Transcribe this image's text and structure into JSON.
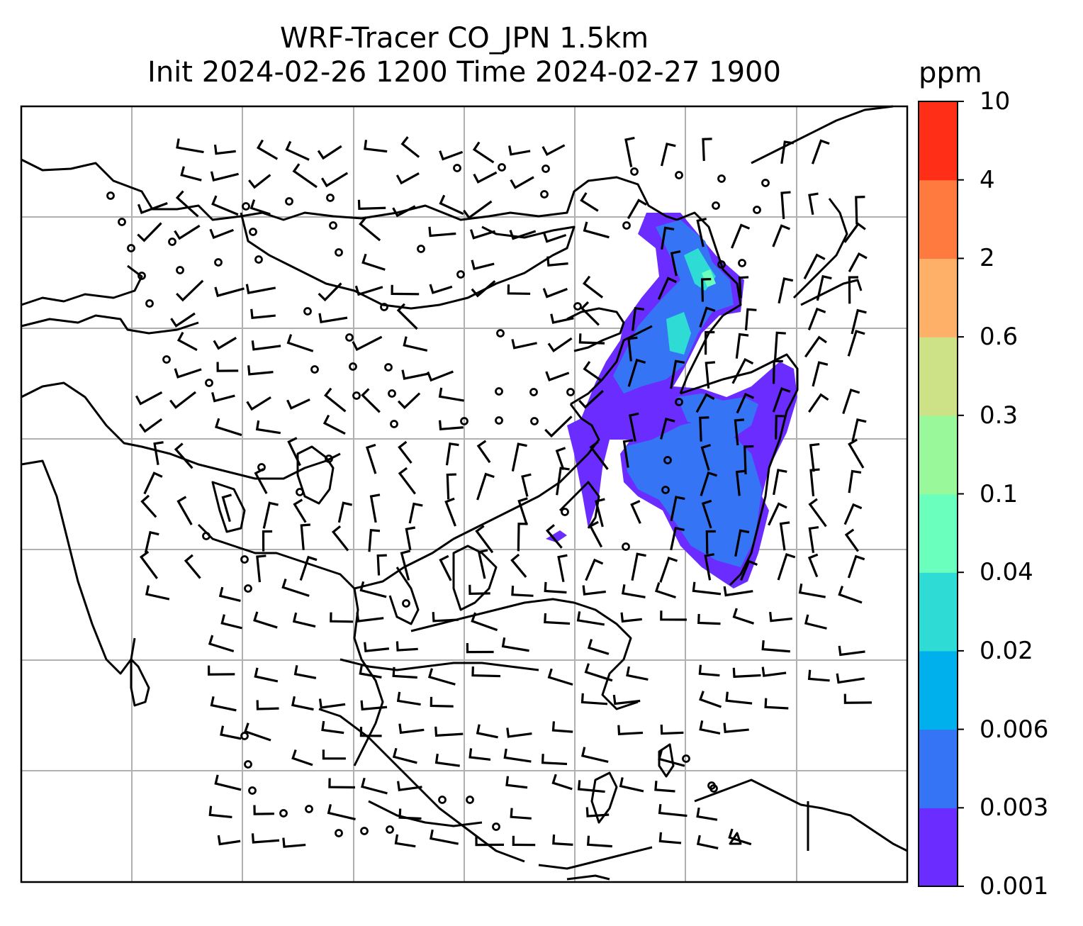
{
  "title": {
    "line1": "WRF-Tracer CO_JPN 1.5km",
    "line2": "Init 2024-02-26 1200 Time 2024-02-27 1900"
  },
  "colorbar": {
    "unit": "ppm",
    "levels": [
      "0.001",
      "0.003",
      "0.006",
      "0.02",
      "0.04",
      "0.1",
      "0.3",
      "0.6",
      "2",
      "4",
      "10"
    ],
    "colors": [
      "#6a2cff",
      "#3575f5",
      "#00b0ec",
      "#2fdbd5",
      "#6bffbd",
      "#99f99a",
      "#cde187",
      "#feb068",
      "#ff7a3e",
      "#ff2e16"
    ]
  },
  "map": {
    "land_color": "#ffffff",
    "coastline_color": "#000000",
    "gridlines": true,
    "gridline_color": "#b0b0b0",
    "field": "CO tracer plume over Korea / Japan",
    "wind_barbs": true
  }
}
